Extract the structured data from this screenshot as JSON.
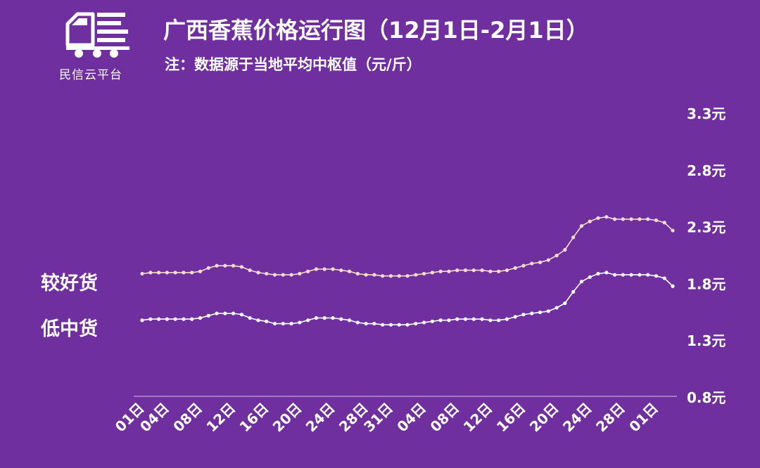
{
  "header": {
    "logo_text": "民信云平台",
    "title": "广西香蕉价格运行图（12月1日-2月1日）",
    "subtitle": "注：数据源于当地平均中枢值（元/斤）"
  },
  "colors": {
    "background": "#6f2f9e",
    "series_better": "#f6dccb",
    "series_lower": "#ffffff",
    "axis": "#d9c6ea"
  },
  "chart_data": {
    "type": "line",
    "title": "广西香蕉价格运行图（12月1日-2月1日）",
    "ylabel": "",
    "xlabel": "",
    "ylim": [
      0.8,
      3.3
    ],
    "yticks": [
      "0.8元",
      "1.3元",
      "1.8元",
      "2.3元",
      "2.8元",
      "3.3元"
    ],
    "ytick_values": [
      0.8,
      1.3,
      1.8,
      2.3,
      2.8,
      3.3
    ],
    "x_tick_labels": [
      "01日",
      "04日",
      "08日",
      "12日",
      "16日",
      "20日",
      "24日",
      "28日",
      "31日",
      "04日",
      "08日",
      "12日",
      "16日",
      "20日",
      "24日",
      "28日",
      "01日"
    ],
    "x_tick_positions": [
      0,
      3,
      7,
      11,
      15,
      19,
      23,
      27,
      30,
      34,
      38,
      42,
      46,
      50,
      54,
      58,
      62
    ],
    "grid": false,
    "series": [
      {
        "name": "较好货",
        "values": [
          1.88,
          1.89,
          1.89,
          1.89,
          1.89,
          1.89,
          1.89,
          1.9,
          1.93,
          1.95,
          1.95,
          1.95,
          1.94,
          1.91,
          1.89,
          1.88,
          1.87,
          1.87,
          1.87,
          1.88,
          1.9,
          1.92,
          1.92,
          1.92,
          1.91,
          1.9,
          1.88,
          1.87,
          1.87,
          1.86,
          1.86,
          1.86,
          1.86,
          1.87,
          1.88,
          1.89,
          1.9,
          1.9,
          1.91,
          1.91,
          1.91,
          1.91,
          1.9,
          1.9,
          1.91,
          1.93,
          1.95,
          1.97,
          1.98,
          2.0,
          2.04,
          2.09,
          2.2,
          2.3,
          2.34,
          2.37,
          2.38,
          2.36,
          2.36,
          2.36,
          2.36,
          2.36,
          2.35,
          2.33,
          2.26
        ]
      },
      {
        "name": "低中货",
        "values": [
          1.47,
          1.48,
          1.48,
          1.48,
          1.48,
          1.48,
          1.48,
          1.49,
          1.51,
          1.53,
          1.53,
          1.53,
          1.52,
          1.49,
          1.47,
          1.46,
          1.44,
          1.44,
          1.44,
          1.45,
          1.47,
          1.49,
          1.49,
          1.49,
          1.48,
          1.47,
          1.45,
          1.44,
          1.44,
          1.43,
          1.43,
          1.43,
          1.43,
          1.44,
          1.45,
          1.46,
          1.47,
          1.47,
          1.48,
          1.48,
          1.48,
          1.48,
          1.47,
          1.47,
          1.48,
          1.5,
          1.52,
          1.53,
          1.54,
          1.55,
          1.58,
          1.62,
          1.72,
          1.81,
          1.85,
          1.88,
          1.89,
          1.87,
          1.87,
          1.87,
          1.87,
          1.87,
          1.86,
          1.84,
          1.77
        ]
      }
    ]
  }
}
